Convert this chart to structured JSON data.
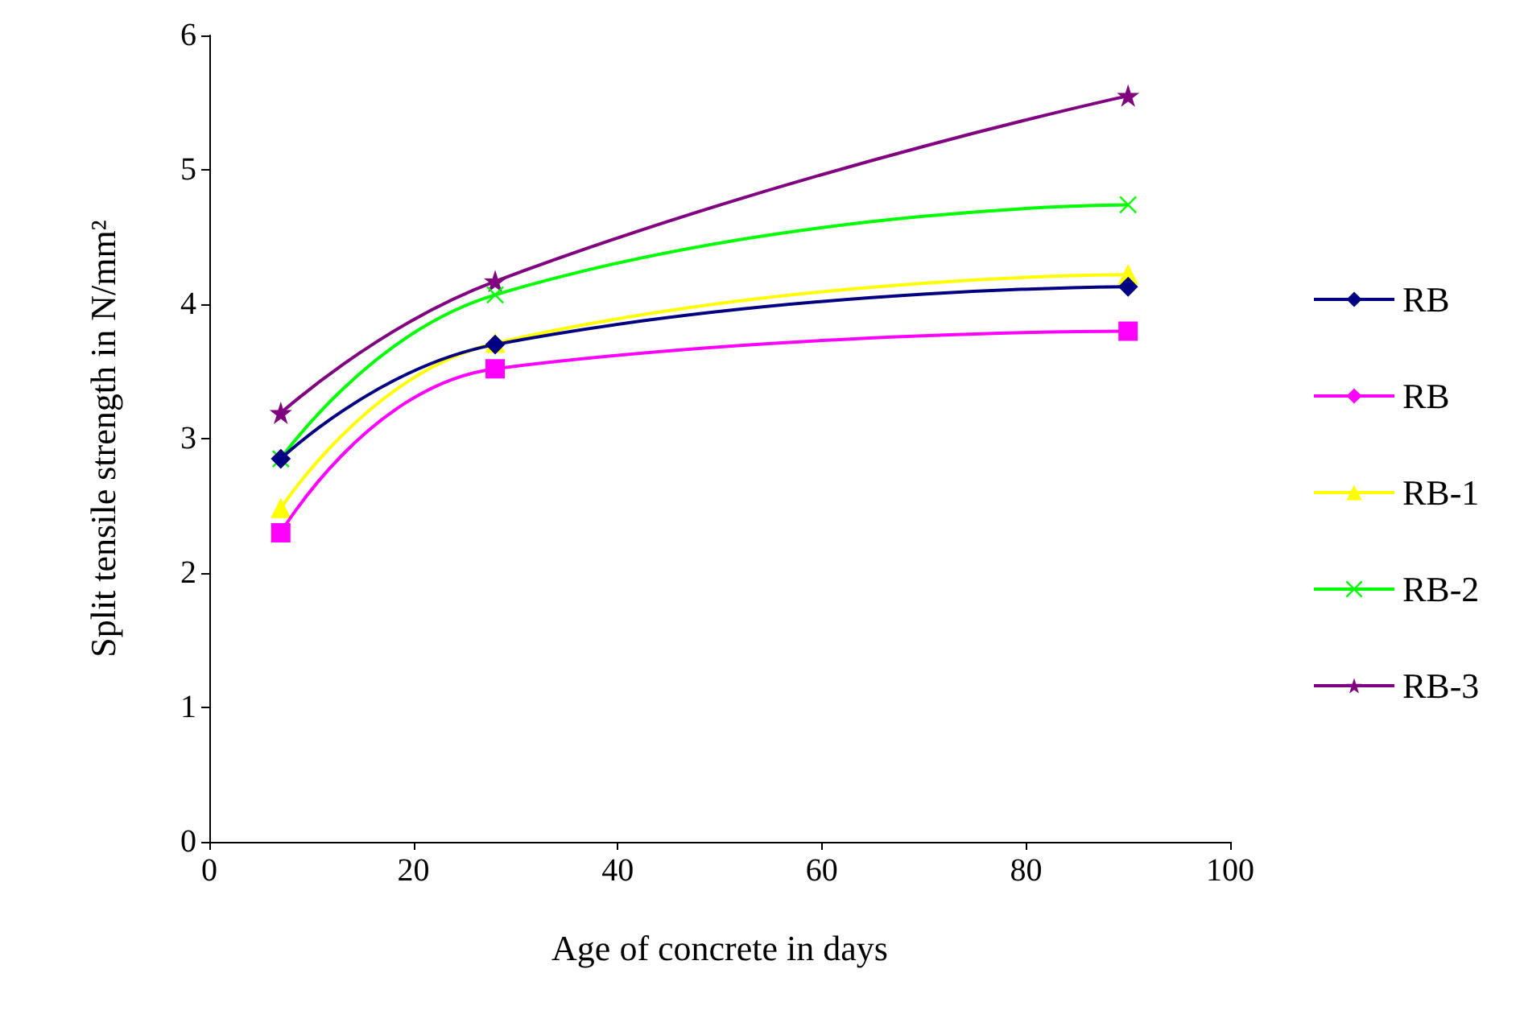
{
  "chart_data": {
    "type": "line",
    "xlabel": "Age of concrete in days",
    "ylabel": "Split tensile strength in N/mm²",
    "x": [
      7,
      28,
      90
    ],
    "xlim": [
      0,
      100
    ],
    "xticks": [
      0,
      20,
      40,
      60,
      80,
      100
    ],
    "ylim": [
      0,
      6
    ],
    "yticks": [
      0,
      1,
      2,
      3,
      4,
      5,
      6
    ],
    "grid": false,
    "legend": "right",
    "series": [
      {
        "name": "RB",
        "color": "#000080",
        "marker": "diamond",
        "values": [
          2.85,
          3.7,
          4.13
        ]
      },
      {
        "name": "RB",
        "color": "#ff00ff",
        "marker": "square",
        "values": [
          2.3,
          3.52,
          3.8
        ]
      },
      {
        "name": "RB-1",
        "color": "#ffff00",
        "marker": "triangle",
        "values": [
          2.48,
          3.71,
          4.22
        ]
      },
      {
        "name": "RB-2",
        "color": "#00ff00",
        "marker": "cross",
        "values": [
          2.85,
          4.07,
          4.74
        ]
      },
      {
        "name": "RB-3",
        "color": "#800080",
        "marker": "star",
        "values": [
          3.19,
          4.17,
          5.55
        ]
      }
    ]
  }
}
